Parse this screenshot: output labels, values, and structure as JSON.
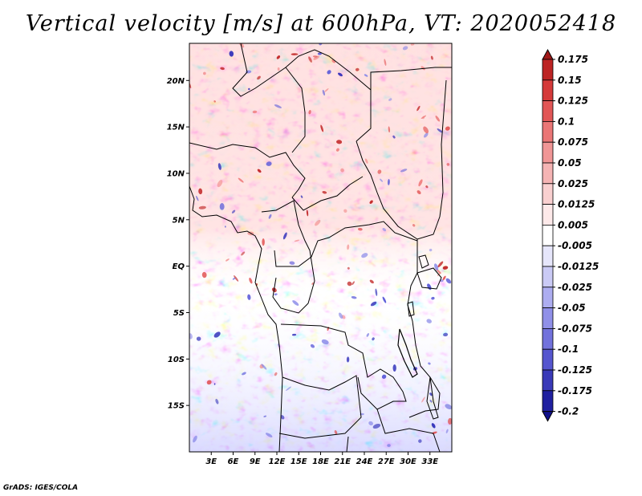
{
  "title": "Vertical velocity [m/s] at 600hPa, VT: 2020052418",
  "credit": "GrADS: IGES/COLA",
  "map": {
    "lon_range": [
      0,
      36
    ],
    "lat_range": [
      -20,
      24
    ],
    "lat_ticks": [
      "20N",
      "15N",
      "10N",
      "5N",
      "EQ",
      "5S",
      "10S",
      "15S"
    ],
    "lat_values": [
      20,
      15,
      10,
      5,
      0,
      -5,
      -10,
      -15
    ],
    "lon_ticks": [
      "3E",
      "6E",
      "9E",
      "12E",
      "15E",
      "18E",
      "21E",
      "24E",
      "27E",
      "30E",
      "33E"
    ],
    "lon_values": [
      3,
      6,
      9,
      12,
      15,
      18,
      21,
      24,
      27,
      30,
      33
    ]
  },
  "colorbar": {
    "levels": [
      "0.175",
      "0.15",
      "0.125",
      "0.1",
      "0.075",
      "0.05",
      "0.025",
      "0.0125",
      "0.005",
      "-0.005",
      "-0.0125",
      "-0.025",
      "-0.05",
      "-0.075",
      "-0.1",
      "-0.125",
      "-0.175",
      "-0.2"
    ],
    "colors": [
      "#a01818",
      "#bd2424",
      "#d53a3a",
      "#e25656",
      "#ea7676",
      "#f09696",
      "#f5b4b4",
      "#f9d0d0",
      "#fde9e9",
      "#ffffff",
      "#e6e6fb",
      "#cacaf5",
      "#adadf0",
      "#9090e8",
      "#7272dc",
      "#5656cf",
      "#3a3ab8",
      "#2020a0",
      "#10108a"
    ]
  },
  "colors": {
    "positive": "#e03030",
    "negative": "#3030c8",
    "border": "#000000"
  }
}
